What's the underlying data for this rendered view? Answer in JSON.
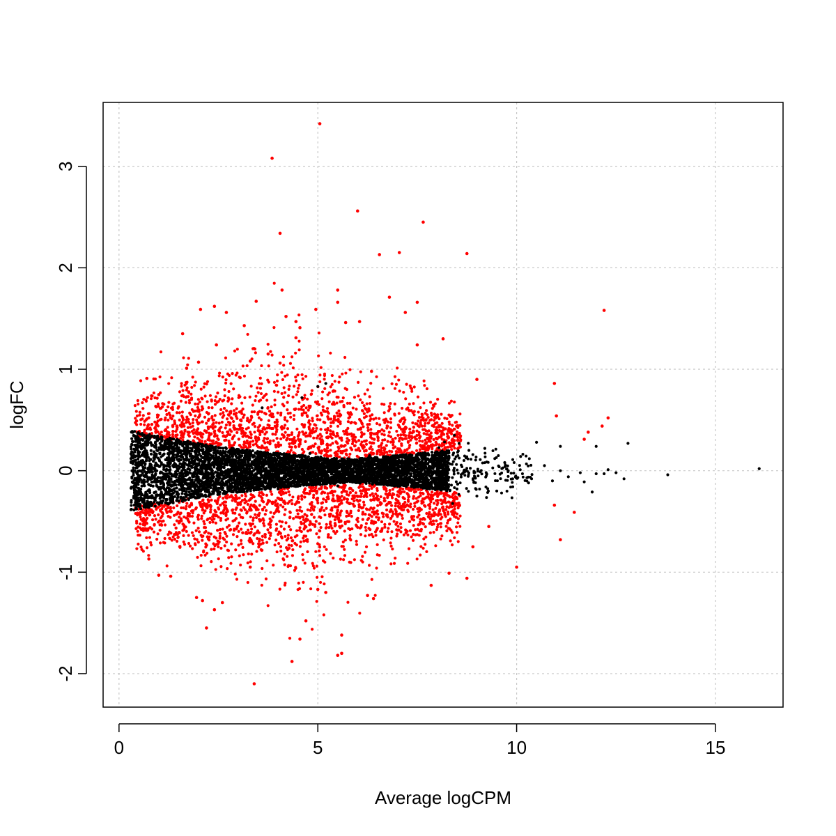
{
  "chart_data": {
    "type": "scatter",
    "title": "",
    "xlabel": "Average logCPM",
    "ylabel": "logFC",
    "xlim": [
      -0.4,
      16.7
    ],
    "ylim": [
      -2.33,
      3.63
    ],
    "xticks": [
      0,
      5,
      10,
      15
    ],
    "yticks": [
      -2,
      -1,
      0,
      1,
      2,
      3
    ],
    "xtick_labels": [
      "0",
      "5",
      "10",
      "15"
    ],
    "ytick_labels": [
      "-2",
      "-1",
      "0",
      "1",
      "2",
      "3"
    ],
    "grid": true,
    "grid_style": "dotted",
    "legend": "none",
    "colors": {
      "significant": "#ff0000",
      "not_significant": "#000000",
      "grid": "#c8c8c8",
      "frame": "#000000"
    },
    "series": [
      {
        "role": "not_significant",
        "color": "#000000",
        "points": [
          [
            0.3,
            0.12
          ],
          [
            0.45,
            -0.22
          ],
          [
            0.6,
            0.3
          ],
          [
            0.8,
            -0.31
          ],
          [
            1.2,
            0.27
          ],
          [
            1.5,
            -0.3
          ],
          [
            2.0,
            0.22
          ],
          [
            2.5,
            -0.2
          ],
          [
            3.2,
            0.16
          ],
          [
            4.0,
            -0.18
          ],
          [
            4.8,
            0.17
          ],
          [
            5.5,
            -0.15
          ],
          [
            6.3,
            0.15
          ],
          [
            7.1,
            -0.13
          ],
          [
            7.9,
            0.14
          ],
          [
            4.6,
            0.72
          ],
          [
            5.0,
            0.83
          ],
          [
            5.2,
            0.86
          ],
          [
            3.6,
            0.62
          ],
          [
            8.3,
            0.13
          ],
          [
            8.5,
            -0.18
          ],
          [
            8.8,
            0.2
          ],
          [
            9.0,
            -0.25
          ],
          [
            9.2,
            0.22
          ],
          [
            9.5,
            -0.2
          ],
          [
            9.7,
            0.08
          ],
          [
            9.9,
            -0.08
          ],
          [
            10.1,
            0.14
          ],
          [
            10.3,
            -0.12
          ],
          [
            10.5,
            0.28
          ],
          [
            10.7,
            0.05
          ],
          [
            10.9,
            -0.1
          ],
          [
            11.1,
            0.0
          ],
          [
            11.3,
            -0.06
          ],
          [
            11.1,
            0.24
          ],
          [
            11.6,
            -0.02
          ],
          [
            11.7,
            -0.11
          ],
          [
            11.9,
            -0.21
          ],
          [
            12.0,
            -0.03
          ],
          [
            12.2,
            -0.03
          ],
          [
            12.3,
            0.01
          ],
          [
            12.5,
            -0.02
          ],
          [
            12.7,
            -0.08
          ],
          [
            12.0,
            0.24
          ],
          [
            12.8,
            0.27
          ],
          [
            13.8,
            -0.04
          ],
          [
            16.1,
            0.02
          ]
        ]
      },
      {
        "role": "significant",
        "color": "#ff0000",
        "points": [
          [
            5.05,
            3.42
          ],
          [
            3.85,
            3.08
          ],
          [
            6.0,
            2.56
          ],
          [
            7.65,
            2.45
          ],
          [
            4.05,
            2.34
          ],
          [
            6.55,
            2.13
          ],
          [
            7.05,
            2.15
          ],
          [
            8.75,
            2.14
          ],
          [
            4.1,
            1.78
          ],
          [
            5.5,
            1.78
          ],
          [
            3.45,
            1.67
          ],
          [
            2.4,
            1.62
          ],
          [
            2.05,
            1.59
          ],
          [
            4.95,
            1.59
          ],
          [
            5.5,
            1.66
          ],
          [
            6.8,
            1.71
          ],
          [
            7.5,
            1.66
          ],
          [
            7.2,
            1.56
          ],
          [
            5.7,
            1.46
          ],
          [
            6.05,
            1.47
          ],
          [
            4.45,
            1.47
          ],
          [
            3.15,
            1.43
          ],
          [
            4.2,
            1.52
          ],
          [
            12.2,
            1.58
          ],
          [
            1.6,
            1.35
          ],
          [
            4.45,
            1.31
          ],
          [
            2.45,
            1.24
          ],
          [
            7.5,
            1.24
          ],
          [
            8.15,
            1.3
          ],
          [
            3.3,
            1.08
          ],
          [
            2.0,
            1.07
          ],
          [
            6.35,
            0.98
          ],
          [
            4.05,
            1.06
          ],
          [
            1.7,
            1.01
          ],
          [
            0.7,
            0.91
          ],
          [
            9.0,
            0.9
          ],
          [
            10.95,
            0.86
          ],
          [
            1.0,
            0.75
          ],
          [
            11.0,
            0.54
          ],
          [
            12.3,
            0.52
          ],
          [
            11.8,
            0.38
          ],
          [
            11.7,
            0.31
          ],
          [
            12.15,
            0.44
          ],
          [
            10.95,
            -0.34
          ],
          [
            11.1,
            -0.68
          ],
          [
            11.45,
            -0.41
          ],
          [
            10.0,
            -0.95
          ],
          [
            8.3,
            -1.01
          ],
          [
            7.85,
            -1.13
          ],
          [
            5.5,
            -1.82
          ],
          [
            5.6,
            -1.8
          ],
          [
            5.6,
            -1.62
          ],
          [
            4.35,
            -1.88
          ],
          [
            4.55,
            -1.66
          ],
          [
            4.7,
            -1.48
          ],
          [
            3.4,
            -2.1
          ],
          [
            2.2,
            -1.55
          ],
          [
            2.4,
            -1.37
          ],
          [
            2.1,
            -1.28
          ],
          [
            1.95,
            -1.25
          ],
          [
            1.0,
            -1.03
          ],
          [
            1.3,
            -1.04
          ],
          [
            0.75,
            -0.87
          ],
          [
            6.4,
            -1.26
          ],
          [
            6.25,
            -1.23
          ],
          [
            5.0,
            -1.17
          ],
          [
            5.2,
            -1.2
          ],
          [
            8.75,
            -1.06
          ],
          [
            3.3,
            -0.95
          ],
          [
            2.6,
            -1.3
          ],
          [
            9.3,
            -0.55
          ],
          [
            8.9,
            -0.75
          ],
          [
            1.5,
            0.63
          ],
          [
            2.7,
            1.56
          ],
          [
            4.55,
            1.41
          ],
          [
            3.75,
            1.15
          ]
        ]
      }
    ]
  }
}
